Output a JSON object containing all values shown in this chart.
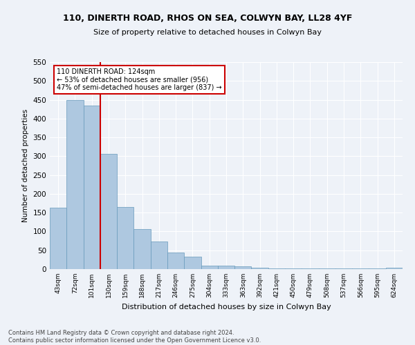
{
  "title1": "110, DINERTH ROAD, RHOS ON SEA, COLWYN BAY, LL28 4YF",
  "title2": "Size of property relative to detached houses in Colwyn Bay",
  "xlabel": "Distribution of detached houses by size in Colwyn Bay",
  "ylabel": "Number of detached properties",
  "categories": [
    "43sqm",
    "72sqm",
    "101sqm",
    "130sqm",
    "159sqm",
    "188sqm",
    "217sqm",
    "246sqm",
    "275sqm",
    "304sqm",
    "333sqm",
    "363sqm",
    "392sqm",
    "421sqm",
    "450sqm",
    "479sqm",
    "508sqm",
    "537sqm",
    "566sqm",
    "595sqm",
    "624sqm"
  ],
  "values": [
    163,
    450,
    435,
    307,
    165,
    107,
    73,
    44,
    33,
    10,
    10,
    8,
    4,
    2,
    1,
    1,
    1,
    1,
    1,
    1,
    4
  ],
  "bar_color": "#aec8e0",
  "bar_edge_color": "#6699bb",
  "vline_x": 2.5,
  "vline_color": "#cc0000",
  "annotation_text": "110 DINERTH ROAD: 124sqm\n← 53% of detached houses are smaller (956)\n47% of semi-detached houses are larger (837) →",
  "annotation_box_color": "white",
  "annotation_box_edge_color": "#cc0000",
  "ylim": [
    0,
    550
  ],
  "yticks": [
    0,
    50,
    100,
    150,
    200,
    250,
    300,
    350,
    400,
    450,
    500,
    550
  ],
  "footnote": "Contains HM Land Registry data © Crown copyright and database right 2024.\nContains public sector information licensed under the Open Government Licence v3.0.",
  "bg_color": "#eef2f8",
  "grid_color": "#ffffff",
  "title1_fontsize": 9,
  "title2_fontsize": 8,
  "annotation_fontsize": 7,
  "ylabel_fontsize": 7.5,
  "xlabel_fontsize": 8,
  "footnote_fontsize": 6
}
